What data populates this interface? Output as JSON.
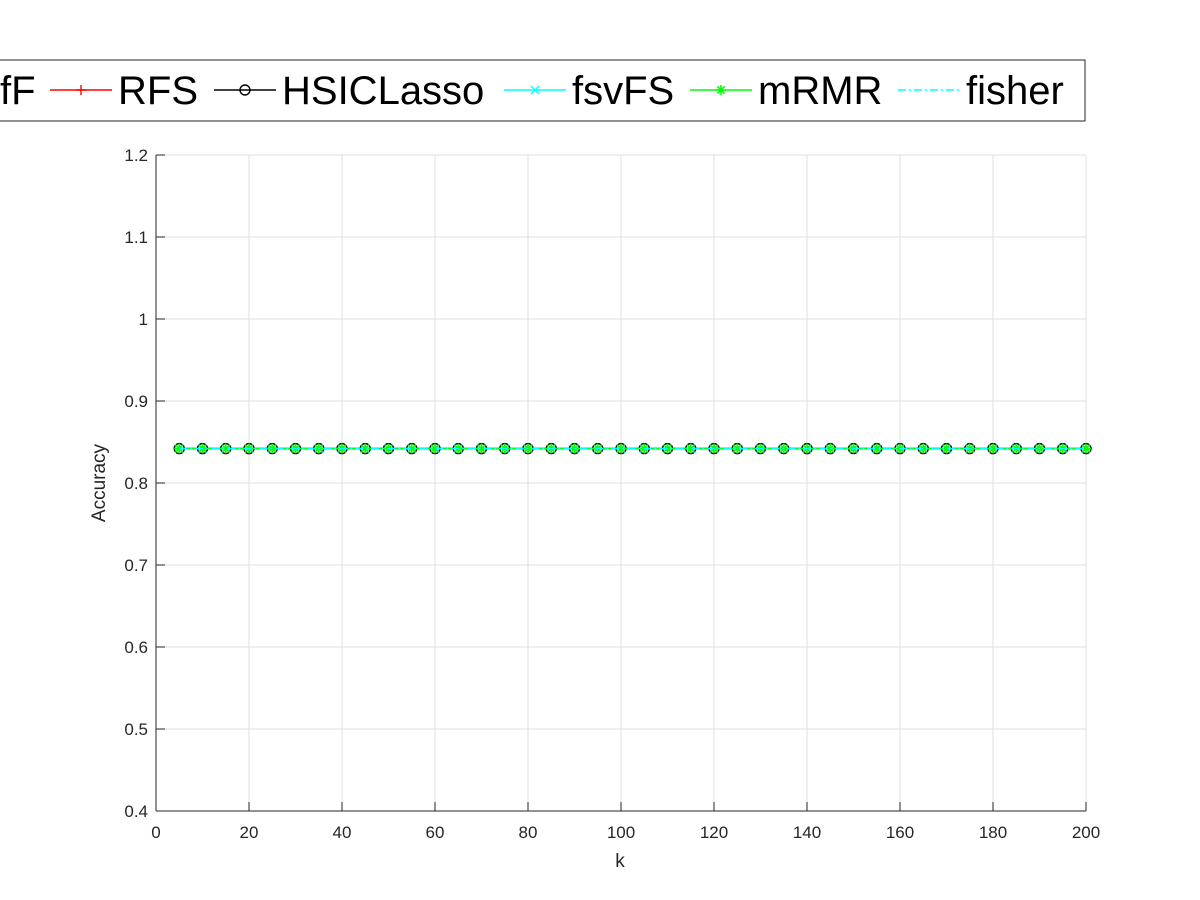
{
  "chart_data": {
    "type": "line",
    "xlabel": "k",
    "ylabel": "Accuracy",
    "xlim": [
      0,
      200
    ],
    "ylim": [
      0.4,
      1.2
    ],
    "xticks": [
      0,
      20,
      40,
      60,
      80,
      100,
      120,
      140,
      160,
      180,
      200
    ],
    "yticks": [
      0.4,
      0.5,
      0.6,
      0.7,
      0.8,
      0.9,
      1,
      1.1,
      1.2
    ],
    "grid": true,
    "legend_position": "top",
    "legend_orientation": "horizontal",
    "x": [
      5,
      10,
      15,
      20,
      25,
      30,
      35,
      40,
      45,
      50,
      55,
      60,
      65,
      70,
      75,
      80,
      85,
      90,
      95,
      100,
      105,
      110,
      115,
      120,
      125,
      130,
      135,
      140,
      145,
      150,
      155,
      160,
      165,
      170,
      175,
      180,
      185,
      190,
      195,
      200
    ],
    "series": [
      {
        "name": "fF",
        "color": "#0000ff",
        "marker": "none",
        "line": "solid",
        "value": 0.842
      },
      {
        "name": "RFS",
        "color": "#ff0000",
        "marker": "plus",
        "line": "solid",
        "value": 0.842
      },
      {
        "name": "HSICLasso",
        "color": "#000000",
        "marker": "circle",
        "line": "solid",
        "value": 0.842
      },
      {
        "name": "fsvFS",
        "color": "#00ffff",
        "marker": "x",
        "line": "solid",
        "value": 0.842
      },
      {
        "name": "mRMR",
        "color": "#00ff00",
        "marker": "star",
        "line": "solid",
        "value": 0.842
      },
      {
        "name": "fisher",
        "color": "#00ffff",
        "marker": "none",
        "line": "dashdot",
        "value": 0.842
      }
    ]
  }
}
